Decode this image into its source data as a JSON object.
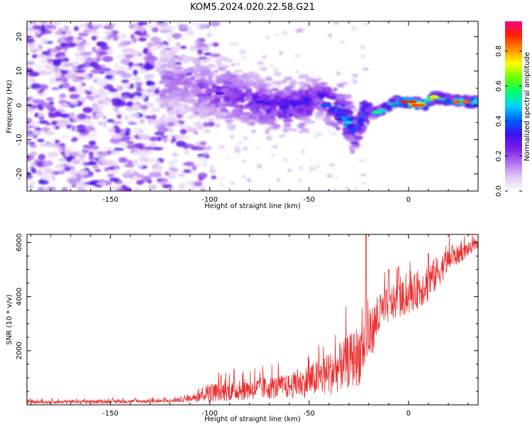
{
  "title": "KOM5.2024.020.22.58.G21",
  "chart_data": [
    {
      "type": "heatmap",
      "name": "spectrogram",
      "xlabel": "Height of straight line (km)",
      "ylabel": "Frequency (Hz)",
      "xlim": [
        -192,
        35
      ],
      "ylim": [
        -25,
        24.5
      ],
      "xticks": [
        -150,
        -100,
        -50,
        0
      ],
      "yticks": [
        -20,
        -10,
        0,
        10,
        20
      ],
      "colorscale": [
        "#ffffff",
        "#e0c8f4",
        "#b072f0",
        "#7a1ee6",
        "#3a10f0",
        "#0060ff",
        "#00d0ff",
        "#00ff70",
        "#6aff00",
        "#ffff00",
        "#ff9000",
        "#ff2000",
        "#ff0080"
      ],
      "colorbar": {
        "label": "Normalized spectral amplitude",
        "range": [
          0,
          0.97
        ],
        "ticks": [
          0.0,
          0.2,
          0.4,
          0.6,
          0.8
        ]
      },
      "ridge": [
        {
          "x": -122,
          "y": 6.5,
          "a": 0.2
        },
        {
          "x": -110,
          "y": 6,
          "a": 0.22
        },
        {
          "x": -100,
          "y": 4,
          "a": 0.25
        },
        {
          "x": -90,
          "y": 3,
          "a": 0.3
        },
        {
          "x": -80,
          "y": 1,
          "a": 0.3
        },
        {
          "x": -70,
          "y": 0,
          "a": 0.32
        },
        {
          "x": -60,
          "y": 0,
          "a": 0.35
        },
        {
          "x": -50,
          "y": 1,
          "a": 0.35
        },
        {
          "x": -45,
          "y": 3,
          "a": 0.3
        },
        {
          "x": -40,
          "y": 1,
          "a": 0.4
        },
        {
          "x": -35,
          "y": -2,
          "a": 0.45
        },
        {
          "x": -30,
          "y": -5,
          "a": 0.5
        },
        {
          "x": -27,
          "y": -8,
          "a": 0.4
        },
        {
          "x": -22,
          "y": -2,
          "a": 0.45
        },
        {
          "x": -15,
          "y": -2,
          "a": 0.55
        },
        {
          "x": -10,
          "y": 0,
          "a": 0.6
        },
        {
          "x": -5,
          "y": 1,
          "a": 0.75
        },
        {
          "x": 0,
          "y": 1,
          "a": 0.9
        },
        {
          "x": 8,
          "y": 0,
          "a": 0.8
        },
        {
          "x": 13,
          "y": 2.5,
          "a": 0.8
        },
        {
          "x": 20,
          "y": 1.5,
          "a": 0.65
        },
        {
          "x": 30,
          "y": 1,
          "a": 0.75
        }
      ]
    },
    {
      "type": "line",
      "name": "snr",
      "xlabel": "Height of straight line (km)",
      "ylabel": "SNR (10 * v/v)",
      "xlim": [
        -192,
        35
      ],
      "ylim": [
        0,
        6300
      ],
      "xticks": [
        -150,
        -100,
        -50,
        0
      ],
      "yticks": [
        2000,
        4000,
        6000
      ],
      "color": "#e83030",
      "envelope": [
        {
          "x": -192,
          "base": 80,
          "spread": 120
        },
        {
          "x": -120,
          "base": 120,
          "spread": 140
        },
        {
          "x": -110,
          "base": 200,
          "spread": 250
        },
        {
          "x": -100,
          "base": 350,
          "spread": 700
        },
        {
          "x": -80,
          "base": 450,
          "spread": 800
        },
        {
          "x": -60,
          "base": 550,
          "spread": 900
        },
        {
          "x": -50,
          "base": 700,
          "spread": 1200
        },
        {
          "x": -40,
          "base": 900,
          "spread": 1600
        },
        {
          "x": -30,
          "base": 1300,
          "spread": 2000
        },
        {
          "x": -25,
          "base": 1500,
          "spread": 2300
        },
        {
          "x": -20,
          "base": 2200,
          "spread": 2000
        },
        {
          "x": -15,
          "base": 3000,
          "spread": 1600
        },
        {
          "x": -10,
          "base": 3500,
          "spread": 1300
        },
        {
          "x": 0,
          "base": 3800,
          "spread": 1300
        },
        {
          "x": 10,
          "base": 4300,
          "spread": 1500
        },
        {
          "x": 20,
          "base": 5200,
          "spread": 900
        },
        {
          "x": 35,
          "base": 5900,
          "spread": 300
        }
      ],
      "spikes": [
        {
          "x": -21.5,
          "y": 6300
        },
        {
          "x": -10,
          "y": 5000
        },
        {
          "x": -5,
          "y": 5100
        },
        {
          "x": 10,
          "y": 5600
        },
        {
          "x": 22,
          "y": 5900
        }
      ]
    }
  ]
}
